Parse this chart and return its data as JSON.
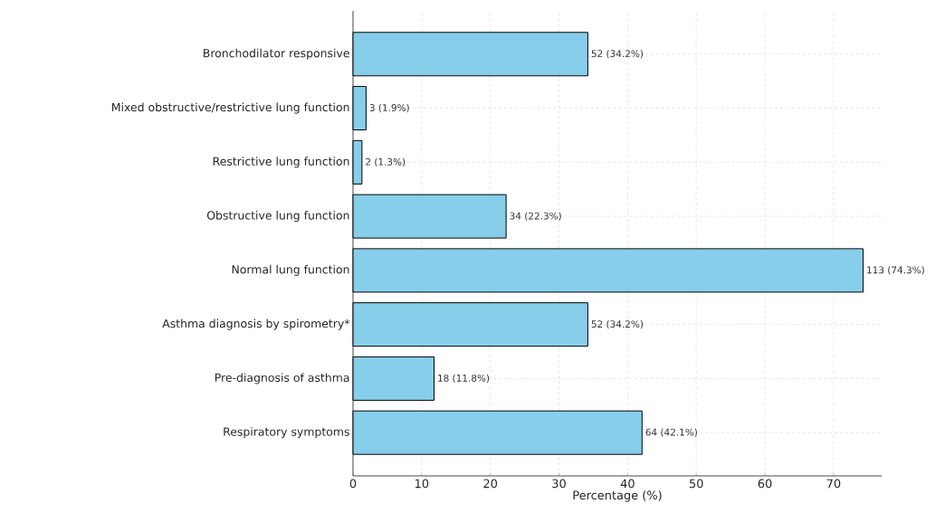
{
  "chart_data": {
    "type": "bar",
    "orientation": "horizontal",
    "xlabel": "Percentage (%)",
    "categories": [
      "Bronchodilator responsive",
      "Mixed obstructive/restrictive lung function",
      "Restrictive lung function",
      "Obstructive lung function",
      "Normal lung function",
      "Asthma diagnosis by spirometry*",
      "Pre-diagnosis of asthma",
      "Respiratory symptoms"
    ],
    "values": [
      34.2,
      1.9,
      1.3,
      22.3,
      74.3,
      34.2,
      11.8,
      42.1
    ],
    "value_labels": [
      "52 (34.2%)",
      "3 (1.9%)",
      "2 (1.3%)",
      "34 (22.3%)",
      "113 (74.3%)",
      "52 (34.2%)",
      "18 (11.8%)",
      "64 (42.1%)"
    ],
    "color": "#87ceeb",
    "xlim": [
      0,
      77
    ],
    "xticks": [
      0,
      10,
      20,
      30,
      40,
      50,
      60,
      70
    ],
    "grid": true
  }
}
